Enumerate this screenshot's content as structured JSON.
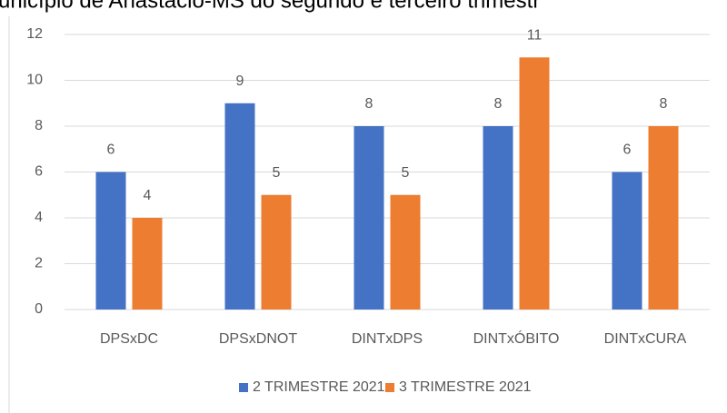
{
  "chart_data": {
    "type": "bar",
    "title": "unicípio de Anastácio-MS do segundo e terceiro trimestr",
    "categories": [
      "DPSxDC",
      "DPSxDNOT",
      "DINTxDPS",
      "DINTxÓBITO",
      "DINTxCURA"
    ],
    "series": [
      {
        "name": "2 TRIMESTRE 2021",
        "color": "#4472c4",
        "values": [
          6,
          9,
          8,
          8,
          6
        ]
      },
      {
        "name": "3 TRIMESTRE 2021",
        "color": "#ed7d31",
        "values": [
          4,
          5,
          5,
          11,
          8
        ]
      }
    ],
    "ylim": [
      0,
      12
    ],
    "yticks": [
      0,
      2,
      4,
      6,
      8,
      10,
      12
    ],
    "grid": true,
    "legend": "bottom"
  }
}
